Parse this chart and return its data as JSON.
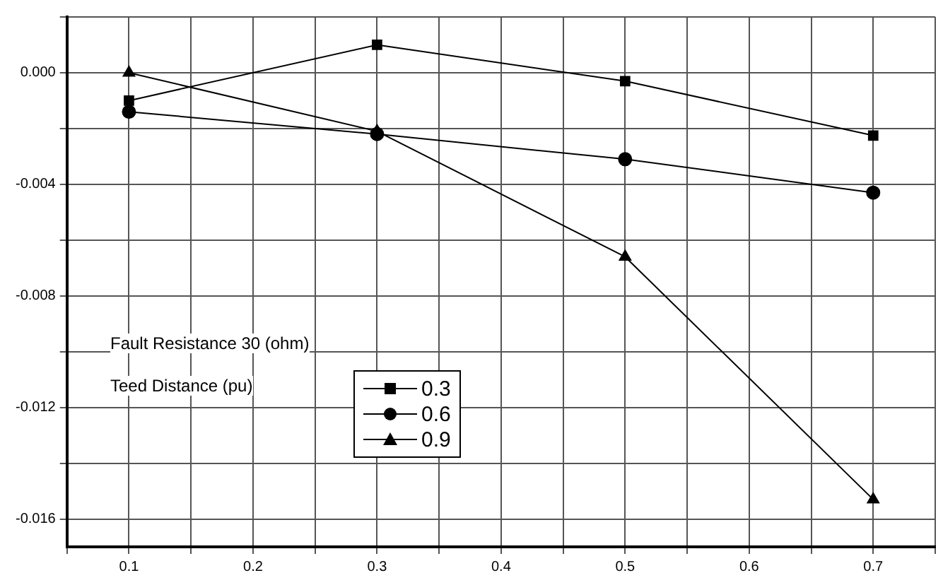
{
  "chart_data": {
    "type": "line",
    "annotations": [
      "Fault Resistance 30 (ohm)"
    ],
    "legend_title": "Teed Distance (pu)",
    "x": [
      0.1,
      0.3,
      0.5,
      0.7
    ],
    "series": [
      {
        "name": "0.3",
        "color": "#000000",
        "marker": "square",
        "values": [
          -0.001,
          0.001,
          -0.0003,
          -0.00225
        ]
      },
      {
        "name": "0.6",
        "color": "#000000",
        "marker": "circle",
        "values": [
          -0.0014,
          -0.0022,
          -0.0031,
          -0.0043
        ]
      },
      {
        "name": "0.9",
        "color": "#000000",
        "marker": "triangle",
        "values": [
          0.0,
          -0.0021,
          -0.0066,
          -0.0153
        ]
      }
    ],
    "xlim": [
      0.05,
      0.75
    ],
    "xticks": [
      {
        "value": 0.05,
        "label": null
      },
      0.1,
      {
        "value": 0.15,
        "label": null
      },
      0.2,
      {
        "value": 0.25,
        "label": null
      },
      0.3,
      {
        "value": 0.35,
        "label": null
      },
      0.4,
      {
        "value": 0.45,
        "label": null
      },
      0.5,
      {
        "value": 0.55,
        "label": null
      },
      0.6,
      {
        "value": 0.65,
        "label": null
      },
      0.7,
      {
        "value": 0.75,
        "label": null
      }
    ],
    "ylim": [
      -0.017,
      0.002
    ],
    "yticks": [
      {
        "value": -0.016,
        "label": "-0.016"
      },
      {
        "value": -0.014,
        "label": null
      },
      {
        "value": -0.012,
        "label": "-0.012"
      },
      {
        "value": -0.01,
        "label": null
      },
      {
        "value": -0.008,
        "label": "-0.008"
      },
      {
        "value": -0.006,
        "label": null
      },
      {
        "value": -0.004,
        "label": "-0.004"
      },
      {
        "value": -0.002,
        "label": null
      },
      {
        "value": 0,
        "label": "0.000"
      },
      {
        "value": 0.002,
        "label": null
      }
    ],
    "grid": true,
    "legend": "bottom left",
    "line_style": "solid"
  }
}
